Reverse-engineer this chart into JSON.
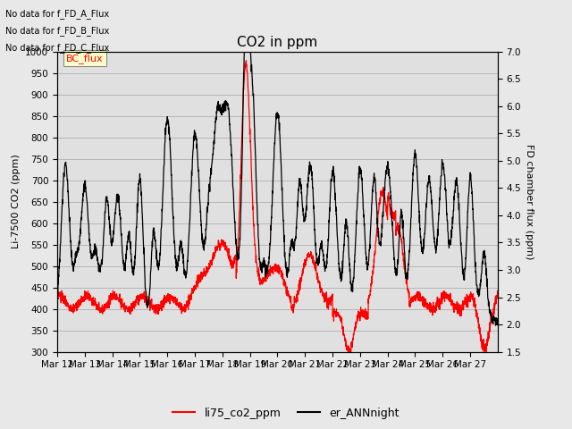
{
  "title": "CO2 in ppm",
  "ylabel_left": "Li-7500 CO2 (ppm)",
  "ylabel_right": "FD chamber flux (ppm)",
  "ylim_left": [
    300,
    1000
  ],
  "ylim_right": [
    1.5,
    7.0
  ],
  "yticks_left": [
    300,
    350,
    400,
    450,
    500,
    550,
    600,
    650,
    700,
    750,
    800,
    850,
    900,
    950,
    1000
  ],
  "yticks_right": [
    1.5,
    2.0,
    2.5,
    3.0,
    3.5,
    4.0,
    4.5,
    5.0,
    5.5,
    6.0,
    6.5,
    7.0
  ],
  "xtick_labels": [
    "Mar 12",
    "Mar 13",
    "Mar 14",
    "Mar 15",
    "Mar 16",
    "Mar 17",
    "Mar 18",
    "Mar 19",
    "Mar 20",
    "Mar 21",
    "Mar 22",
    "Mar 23",
    "Mar 24",
    "Mar 25",
    "Mar 26",
    "Mar 27"
  ],
  "no_data_texts": [
    "No data for f_FD_A_Flux",
    "No data for f_FD_B_Flux",
    "No data for f_FD_C_Flux"
  ],
  "legend_box_text": "BC_flux",
  "legend_entries": [
    "li75_co2_ppm",
    "er_ANNnight"
  ],
  "legend_colors": [
    "red",
    "black"
  ],
  "background_color": "#e8e8e8",
  "plot_bg_color": "#e0e0e0",
  "line_color_red": "#ff0000",
  "line_color_black": "#000000",
  "title_fontsize": 11,
  "axis_label_fontsize": 8,
  "tick_fontsize": 7.5
}
